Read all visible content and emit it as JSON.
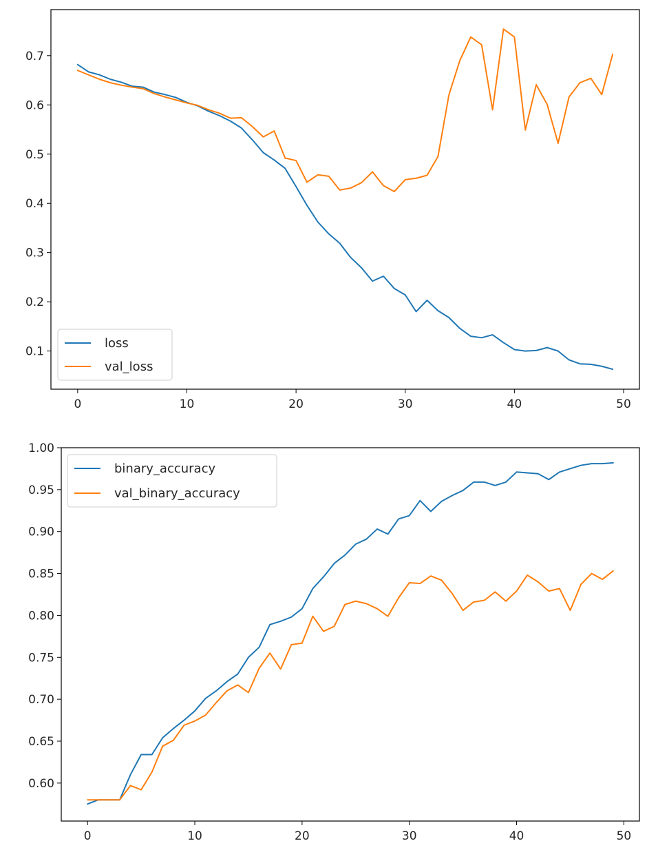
{
  "colors": {
    "series1": "#1f77b4",
    "series2": "#ff7f0e",
    "axis": "#000000",
    "legend_border": "#cccccc",
    "text": "#262626"
  },
  "chart_data": [
    {
      "type": "line",
      "title": "",
      "xlabel": "",
      "ylabel": "",
      "xlim": [
        -2.45,
        51.45
      ],
      "ylim": [
        0.0225,
        0.7935
      ],
      "xticks": [
        0,
        10,
        20,
        30,
        40,
        50
      ],
      "xtick_labels": [
        "0",
        "10",
        "20",
        "30",
        "40",
        "50"
      ],
      "yticks": [
        0.1,
        0.2,
        0.3,
        0.4,
        0.5,
        0.6,
        0.7
      ],
      "ytick_labels": [
        "0.1",
        "0.2",
        "0.3",
        "0.4",
        "0.5",
        "0.6",
        "0.7"
      ],
      "legend_position": "lower-left",
      "x": [
        0,
        1,
        2,
        3,
        4,
        5,
        6,
        7,
        8,
        9,
        10,
        11,
        12,
        13,
        14,
        15,
        16,
        17,
        18,
        19,
        20,
        21,
        22,
        23,
        24,
        25,
        26,
        27,
        28,
        29,
        30,
        31,
        32,
        33,
        34,
        35,
        36,
        37,
        38,
        39,
        40,
        41,
        42,
        43,
        44,
        45,
        46,
        47,
        48,
        49
      ],
      "series": [
        {
          "name": "loss",
          "color": "#1f77b4",
          "values": [
            0.682,
            0.667,
            0.661,
            0.652,
            0.646,
            0.638,
            0.636,
            0.626,
            0.621,
            0.615,
            0.605,
            0.598,
            0.587,
            0.578,
            0.567,
            0.553,
            0.529,
            0.503,
            0.488,
            0.471,
            0.434,
            0.396,
            0.362,
            0.338,
            0.319,
            0.29,
            0.269,
            0.242,
            0.252,
            0.227,
            0.214,
            0.18,
            0.203,
            0.182,
            0.168,
            0.146,
            0.13,
            0.127,
            0.133,
            0.117,
            0.103,
            0.1,
            0.101,
            0.107,
            0.1,
            0.082,
            0.074,
            0.073,
            0.069,
            0.063
          ]
        },
        {
          "name": "val_loss",
          "color": "#ff7f0e",
          "values": [
            0.67,
            0.661,
            0.652,
            0.645,
            0.64,
            0.636,
            0.633,
            0.623,
            0.616,
            0.61,
            0.604,
            0.599,
            0.59,
            0.583,
            0.573,
            0.574,
            0.556,
            0.535,
            0.547,
            0.492,
            0.487,
            0.443,
            0.458,
            0.455,
            0.427,
            0.431,
            0.442,
            0.464,
            0.436,
            0.424,
            0.448,
            0.451,
            0.457,
            0.495,
            0.62,
            0.69,
            0.738,
            0.722,
            0.59,
            0.754,
            0.738,
            0.549,
            0.641,
            0.601,
            0.522,
            0.616,
            0.645,
            0.654,
            0.621,
            0.703
          ]
        }
      ]
    },
    {
      "type": "line",
      "title": "",
      "xlabel": "",
      "ylabel": "",
      "xlim": [
        -2.45,
        51.45
      ],
      "ylim": [
        0.5547,
        1.0
      ],
      "xticks": [
        0,
        10,
        20,
        30,
        40,
        50
      ],
      "xtick_labels": [
        "0",
        "10",
        "20",
        "30",
        "40",
        "50"
      ],
      "yticks": [
        0.6,
        0.65,
        0.7,
        0.75,
        0.8,
        0.85,
        0.9,
        0.95,
        1.0
      ],
      "ytick_labels": [
        "0.60",
        "0.65",
        "0.70",
        "0.75",
        "0.80",
        "0.85",
        "0.90",
        "0.95",
        "1.00"
      ],
      "legend_position": "top-left",
      "x": [
        0,
        1,
        2,
        3,
        4,
        5,
        6,
        7,
        8,
        9,
        10,
        11,
        12,
        13,
        14,
        15,
        16,
        17,
        18,
        19,
        20,
        21,
        22,
        23,
        24,
        25,
        26,
        27,
        28,
        29,
        30,
        31,
        32,
        33,
        34,
        35,
        36,
        37,
        38,
        39,
        40,
        41,
        42,
        43,
        44,
        45,
        46,
        47,
        48,
        49
      ],
      "series": [
        {
          "name": "binary_accuracy",
          "color": "#1f77b4",
          "values": [
            0.575,
            0.58,
            0.58,
            0.58,
            0.61,
            0.634,
            0.634,
            0.654,
            0.665,
            0.675,
            0.686,
            0.701,
            0.71,
            0.721,
            0.73,
            0.75,
            0.762,
            0.789,
            0.793,
            0.798,
            0.808,
            0.832,
            0.846,
            0.862,
            0.872,
            0.885,
            0.891,
            0.903,
            0.897,
            0.915,
            0.919,
            0.937,
            0.924,
            0.936,
            0.943,
            0.949,
            0.959,
            0.959,
            0.955,
            0.959,
            0.971,
            0.97,
            0.969,
            0.962,
            0.971,
            0.975,
            0.979,
            0.981,
            0.981,
            0.982
          ]
        },
        {
          "name": "val_binary_accuracy",
          "color": "#ff7f0e",
          "values": [
            0.58,
            0.58,
            0.58,
            0.58,
            0.597,
            0.592,
            0.613,
            0.644,
            0.651,
            0.669,
            0.674,
            0.681,
            0.696,
            0.71,
            0.717,
            0.708,
            0.737,
            0.755,
            0.736,
            0.765,
            0.767,
            0.799,
            0.781,
            0.787,
            0.813,
            0.817,
            0.814,
            0.808,
            0.799,
            0.821,
            0.839,
            0.838,
            0.847,
            0.842,
            0.826,
            0.806,
            0.816,
            0.818,
            0.828,
            0.817,
            0.829,
            0.848,
            0.84,
            0.829,
            0.832,
            0.806,
            0.837,
            0.85,
            0.843,
            0.853
          ]
        }
      ]
    }
  ]
}
